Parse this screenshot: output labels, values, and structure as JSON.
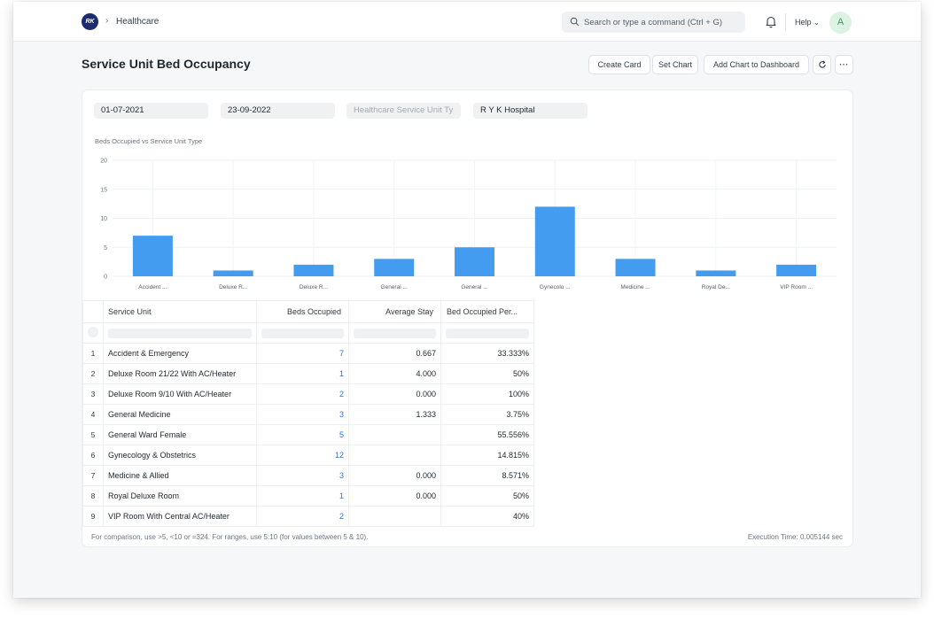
{
  "navbar": {
    "logo_text": "RK",
    "breadcrumb": "Healthcare",
    "search_placeholder": "Search or type a command (Ctrl + G)",
    "help_label": "Help",
    "avatar_initial": "A"
  },
  "page": {
    "title": "Service Unit Bed Occupancy",
    "buttons": {
      "create_card": "Create Card",
      "set_chart": "Set Chart",
      "add_chart": "Add Chart to Dashboard",
      "more": "···"
    }
  },
  "filters": {
    "from_date": "01-07-2021",
    "to_date": "23-09-2022",
    "service_unit_type_placeholder": "Healthcare Service Unit Ty",
    "company": "R Y K Hospital"
  },
  "chart_data": {
    "type": "bar",
    "title": "Beds Occupied vs Service Unit Type",
    "categories": [
      "Accident ...",
      "Deluxe R...",
      "Deluxe R...",
      "General ...",
      "General ...",
      "Gynecolo ...",
      "Medicine ...",
      "Royal De...",
      "VIP Room ..."
    ],
    "values": [
      7,
      1,
      2,
      3,
      5,
      12,
      3,
      1,
      2
    ],
    "yticks": [
      0,
      5,
      10,
      15,
      20
    ],
    "ylim": [
      0,
      20
    ],
    "color": "#449CF0"
  },
  "table": {
    "columns": [
      "Service Unit",
      "Beds Occupied",
      "Average Stay",
      "Bed Occupied Per..."
    ],
    "rows": [
      {
        "n": "1",
        "unit": "Accident & Emergency",
        "beds": "7",
        "stay": "0.667",
        "pct": "33.333%"
      },
      {
        "n": "2",
        "unit": "Deluxe Room 21/22 With AC/Heater",
        "beds": "1",
        "stay": "4.000",
        "pct": "50%"
      },
      {
        "n": "3",
        "unit": "Deluxe Room 9/10 With AC/Heater",
        "beds": "2",
        "stay": "0.000",
        "pct": "100%"
      },
      {
        "n": "4",
        "unit": "General Medicine",
        "beds": "3",
        "stay": "1.333",
        "pct": "3.75%"
      },
      {
        "n": "5",
        "unit": "General Ward Female",
        "beds": "5",
        "stay": "",
        "pct": "55.556%"
      },
      {
        "n": "6",
        "unit": "Gynecology & Obstetrics",
        "beds": "12",
        "stay": "",
        "pct": "14.815%"
      },
      {
        "n": "7",
        "unit": "Medicine & Allied",
        "beds": "3",
        "stay": "0.000",
        "pct": "8.571%"
      },
      {
        "n": "8",
        "unit": "Royal Deluxe Room",
        "beds": "1",
        "stay": "0.000",
        "pct": "50%"
      },
      {
        "n": "9",
        "unit": "VIP Room With Central AC/Heater",
        "beds": "2",
        "stay": "",
        "pct": "40%"
      }
    ]
  },
  "footer": {
    "help_text": "For comparison, use >5, <10 or =324. For ranges, use 5:10 (for values between 5 & 10).",
    "execution_time": "Execution Time: 0.005144 sec"
  }
}
